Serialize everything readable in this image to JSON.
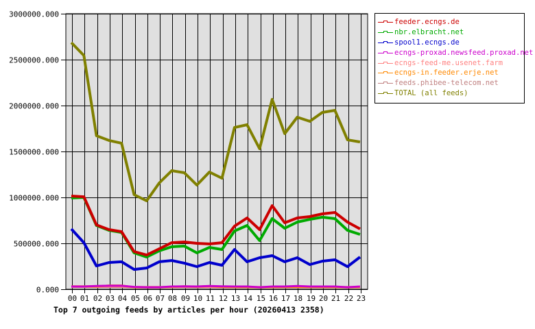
{
  "chart_data": {
    "type": "line",
    "title": "Top 7 outgoing feeds by articles per hour (20260413 2358)",
    "xlabel": "",
    "ylabel": "",
    "ylim": [
      0,
      3000000
    ],
    "yticks": [
      "0.000",
      "500000.000",
      "1000000.000",
      "1500000.000",
      "2000000.000",
      "2500000.000",
      "3000000.000"
    ],
    "ytick_values": [
      0,
      500000,
      1000000,
      1500000,
      2000000,
      2500000,
      3000000
    ],
    "categories": [
      "00",
      "01",
      "02",
      "03",
      "04",
      "05",
      "06",
      "07",
      "08",
      "09",
      "10",
      "11",
      "12",
      "13",
      "14",
      "15",
      "16",
      "17",
      "18",
      "19",
      "20",
      "21",
      "22",
      "23"
    ],
    "grid": true,
    "legend_position": "right",
    "series": [
      {
        "name": "feeder.ecngs.de",
        "color": "#cc0000",
        "values": [
          1015000,
          1007000,
          701000,
          649000,
          627000,
          410000,
          373000,
          440000,
          507000,
          515000,
          500000,
          493000,
          507000,
          687000,
          776000,
          649000,
          910000,
          724000,
          776000,
          791000,
          821000,
          836000,
          731000,
          657000
        ]
      },
      {
        "name": "nbr.elbracht.net",
        "color": "#00aa00",
        "values": [
          993000,
          1000000,
          694000,
          642000,
          619000,
          396000,
          351000,
          418000,
          463000,
          470000,
          396000,
          455000,
          433000,
          634000,
          694000,
          530000,
          769000,
          664000,
          731000,
          761000,
          784000,
          769000,
          642000,
          597000
        ]
      },
      {
        "name": "spool1.ecngs.de",
        "color": "#0000cc",
        "values": [
          657000,
          507000,
          254000,
          291000,
          299000,
          216000,
          231000,
          299000,
          313000,
          284000,
          246000,
          291000,
          261000,
          433000,
          299000,
          343000,
          366000,
          299000,
          343000,
          269000,
          306000,
          321000,
          246000,
          351000
        ]
      },
      {
        "name": "ecngs-proxad.newsfeed.proxad.net",
        "color": "#cc00cc",
        "values": [
          30000,
          30000,
          36000,
          38000,
          38000,
          25000,
          22000,
          22000,
          30000,
          32000,
          30000,
          36000,
          32000,
          30000,
          30000,
          22000,
          30000,
          30000,
          36000,
          30000,
          30000,
          30000,
          22000,
          30000
        ]
      },
      {
        "name": "ecngs-feed-me.usenet.farm",
        "color": "#ff8080",
        "values": [
          28000,
          28000,
          28000,
          30000,
          30000,
          24000,
          24000,
          24000,
          24000,
          26000,
          26000,
          26000,
          24000,
          24000,
          24000,
          24000,
          24000,
          26000,
          26000,
          30000,
          24000,
          24000,
          24000,
          24000
        ]
      },
      {
        "name": "ecngs-in.feeder.erje.net",
        "color": "#ff8800",
        "values": [
          32000,
          32000,
          30000,
          40000,
          40000,
          22000,
          20000,
          20000,
          26000,
          32000,
          28000,
          34000,
          26000,
          24000,
          24000,
          20000,
          24000,
          24000,
          26000,
          24000,
          24000,
          24000,
          20000,
          24000
        ]
      },
      {
        "name": "feeds.phibee-telecom.net",
        "color": "#c08080",
        "values": [
          24000,
          24000,
          24000,
          24000,
          24000,
          20000,
          20000,
          20000,
          22000,
          22000,
          20000,
          22000,
          20000,
          20000,
          20000,
          20000,
          20000,
          20000,
          20000,
          20000,
          20000,
          20000,
          20000,
          20000
        ]
      },
      {
        "name": "TOTAL (all feeds)",
        "color": "#808000",
        "values": [
          2686000,
          2545000,
          1672000,
          1620000,
          1590000,
          1030000,
          963000,
          1157000,
          1291000,
          1269000,
          1134000,
          1276000,
          1209000,
          1761000,
          1791000,
          1530000,
          2067000,
          1694000,
          1873000,
          1828000,
          1925000,
          1948000,
          1627000,
          1604000
        ]
      }
    ]
  },
  "legend": {
    "items": [
      {
        "label": "feeder.ecngs.de",
        "color": "#cc0000"
      },
      {
        "label": "nbr.elbracht.net",
        "color": "#00aa00"
      },
      {
        "label": "spool1.ecngs.de",
        "color": "#0000cc"
      },
      {
        "label": "ecngs-proxad.newsfeed.proxad.net",
        "color": "#cc00cc"
      },
      {
        "label": "ecngs-feed-me.usenet.farm",
        "color": "#ff8080"
      },
      {
        "label": "ecngs-in.feeder.erje.net",
        "color": "#ff8800"
      },
      {
        "label": "feeds.phibee-telecom.net",
        "color": "#c08080"
      },
      {
        "label": "TOTAL (all feeds)",
        "color": "#808000"
      }
    ]
  },
  "colors": {
    "plot_bg": "#e0e0e0",
    "grid": "#000000",
    "page_bg": "#ffffff"
  }
}
